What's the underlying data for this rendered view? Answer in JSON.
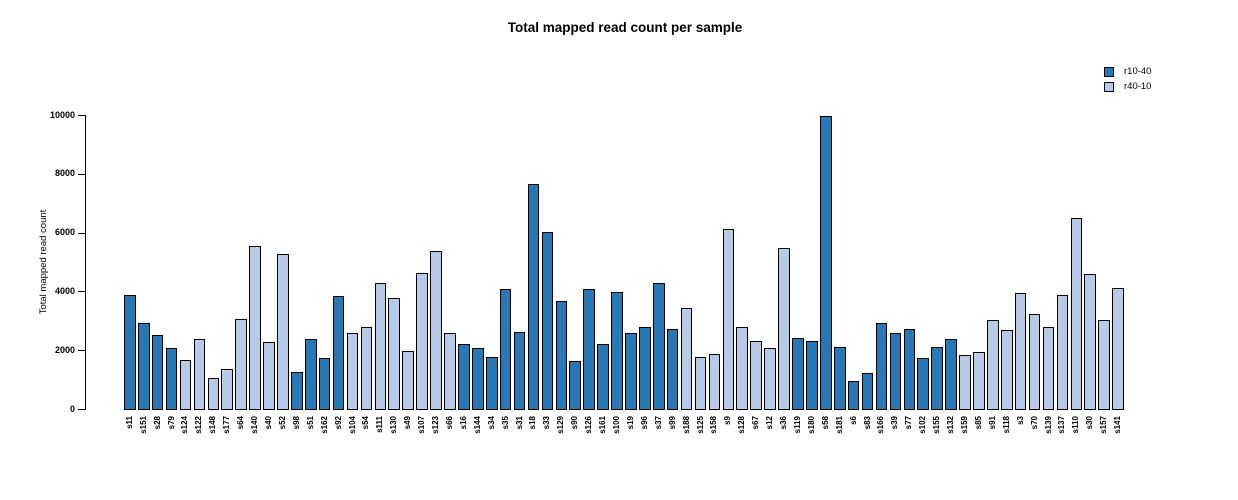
{
  "chart_data": {
    "type": "bar",
    "title": "Total mapped read count per sample",
    "xlabel": "",
    "ylabel": "Total mapped read count",
    "ylim": [
      0,
      10000
    ],
    "yticks": [
      0,
      2000,
      4000,
      6000,
      8000,
      10000
    ],
    "grid": false,
    "legend_position": "topright",
    "legend": [
      {
        "label": "r10-40",
        "color": "#2878b5"
      },
      {
        "label": "r40-10",
        "color": "#b7cbe8"
      }
    ],
    "bars": [
      {
        "label": "s11",
        "value": 3900,
        "series": "r10-40"
      },
      {
        "label": "s151",
        "value": 2950,
        "series": "r10-40"
      },
      {
        "label": "s28",
        "value": 2550,
        "series": "r10-40"
      },
      {
        "label": "s79",
        "value": 2100,
        "series": "r10-40"
      },
      {
        "label": "s124",
        "value": 1700,
        "series": "r40-10"
      },
      {
        "label": "s122",
        "value": 2400,
        "series": "r40-10"
      },
      {
        "label": "s148",
        "value": 1100,
        "series": "r40-10"
      },
      {
        "label": "s177",
        "value": 1400,
        "series": "r40-10"
      },
      {
        "label": "s64",
        "value": 3100,
        "series": "r40-10"
      },
      {
        "label": "s140",
        "value": 5550,
        "series": "r40-10"
      },
      {
        "label": "s40",
        "value": 2300,
        "series": "r40-10"
      },
      {
        "label": "s52",
        "value": 5300,
        "series": "r40-10"
      },
      {
        "label": "s98",
        "value": 1300,
        "series": "r10-40"
      },
      {
        "label": "s51",
        "value": 2400,
        "series": "r10-40"
      },
      {
        "label": "s162",
        "value": 1750,
        "series": "r10-40"
      },
      {
        "label": "s92",
        "value": 3850,
        "series": "r10-40"
      },
      {
        "label": "s104",
        "value": 2600,
        "series": "r40-10"
      },
      {
        "label": "s54",
        "value": 2800,
        "series": "r40-10"
      },
      {
        "label": "s111",
        "value": 4300,
        "series": "r40-10"
      },
      {
        "label": "s130",
        "value": 3800,
        "series": "r40-10"
      },
      {
        "label": "s49",
        "value": 2000,
        "series": "r40-10"
      },
      {
        "label": "s107",
        "value": 4650,
        "series": "r40-10"
      },
      {
        "label": "s123",
        "value": 5400,
        "series": "r40-10"
      },
      {
        "label": "s66",
        "value": 2600,
        "series": "r40-10"
      },
      {
        "label": "s16",
        "value": 2250,
        "series": "r10-40"
      },
      {
        "label": "s144",
        "value": 2100,
        "series": "r10-40"
      },
      {
        "label": "s34",
        "value": 1800,
        "series": "r10-40"
      },
      {
        "label": "s35",
        "value": 4100,
        "series": "r10-40"
      },
      {
        "label": "s31",
        "value": 2650,
        "series": "r10-40"
      },
      {
        "label": "s18",
        "value": 7650,
        "series": "r10-40"
      },
      {
        "label": "s33",
        "value": 6050,
        "series": "r10-40"
      },
      {
        "label": "s129",
        "value": 3700,
        "series": "r10-40"
      },
      {
        "label": "s90",
        "value": 1650,
        "series": "r10-40"
      },
      {
        "label": "s126",
        "value": 4100,
        "series": "r10-40"
      },
      {
        "label": "s161",
        "value": 2250,
        "series": "r10-40"
      },
      {
        "label": "s100",
        "value": 4000,
        "series": "r10-40"
      },
      {
        "label": "s19",
        "value": 2600,
        "series": "r10-40"
      },
      {
        "label": "s96",
        "value": 2800,
        "series": "r10-40"
      },
      {
        "label": "s37",
        "value": 4300,
        "series": "r10-40"
      },
      {
        "label": "s99",
        "value": 2750,
        "series": "r10-40"
      },
      {
        "label": "s188",
        "value": 3450,
        "series": "r40-10"
      },
      {
        "label": "s125",
        "value": 1800,
        "series": "r40-10"
      },
      {
        "label": "s158",
        "value": 1900,
        "series": "r40-10"
      },
      {
        "label": "s9",
        "value": 6150,
        "series": "r40-10"
      },
      {
        "label": "s128",
        "value": 2800,
        "series": "r40-10"
      },
      {
        "label": "s67",
        "value": 2350,
        "series": "r40-10"
      },
      {
        "label": "s12",
        "value": 2100,
        "series": "r40-10"
      },
      {
        "label": "s36",
        "value": 5500,
        "series": "r40-10"
      },
      {
        "label": "s119",
        "value": 2450,
        "series": "r10-40"
      },
      {
        "label": "s180",
        "value": 2350,
        "series": "r10-40"
      },
      {
        "label": "s58",
        "value": 9950,
        "series": "r10-40"
      },
      {
        "label": "s181",
        "value": 2150,
        "series": "r10-40"
      },
      {
        "label": "s6",
        "value": 1000,
        "series": "r10-40"
      },
      {
        "label": "s83",
        "value": 1250,
        "series": "r10-40"
      },
      {
        "label": "s166",
        "value": 2950,
        "series": "r10-40"
      },
      {
        "label": "s39",
        "value": 2600,
        "series": "r10-40"
      },
      {
        "label": "s77",
        "value": 2750,
        "series": "r10-40"
      },
      {
        "label": "s102",
        "value": 1750,
        "series": "r10-40"
      },
      {
        "label": "s155",
        "value": 2150,
        "series": "r10-40"
      },
      {
        "label": "s132",
        "value": 2400,
        "series": "r10-40"
      },
      {
        "label": "s159",
        "value": 1850,
        "series": "r40-10"
      },
      {
        "label": "s85",
        "value": 1950,
        "series": "r40-10"
      },
      {
        "label": "s91",
        "value": 3050,
        "series": "r40-10"
      },
      {
        "label": "s118",
        "value": 2700,
        "series": "r40-10"
      },
      {
        "label": "s3",
        "value": 3950,
        "series": "r40-10"
      },
      {
        "label": "s70",
        "value": 3250,
        "series": "r40-10"
      },
      {
        "label": "s139",
        "value": 2800,
        "series": "r40-10"
      },
      {
        "label": "s137",
        "value": 3900,
        "series": "r40-10"
      },
      {
        "label": "s110",
        "value": 6500,
        "series": "r40-10"
      },
      {
        "label": "s30",
        "value": 4600,
        "series": "r40-10"
      },
      {
        "label": "s157",
        "value": 3050,
        "series": "r40-10"
      },
      {
        "label": "s141",
        "value": 4150,
        "series": "r40-10"
      }
    ]
  }
}
